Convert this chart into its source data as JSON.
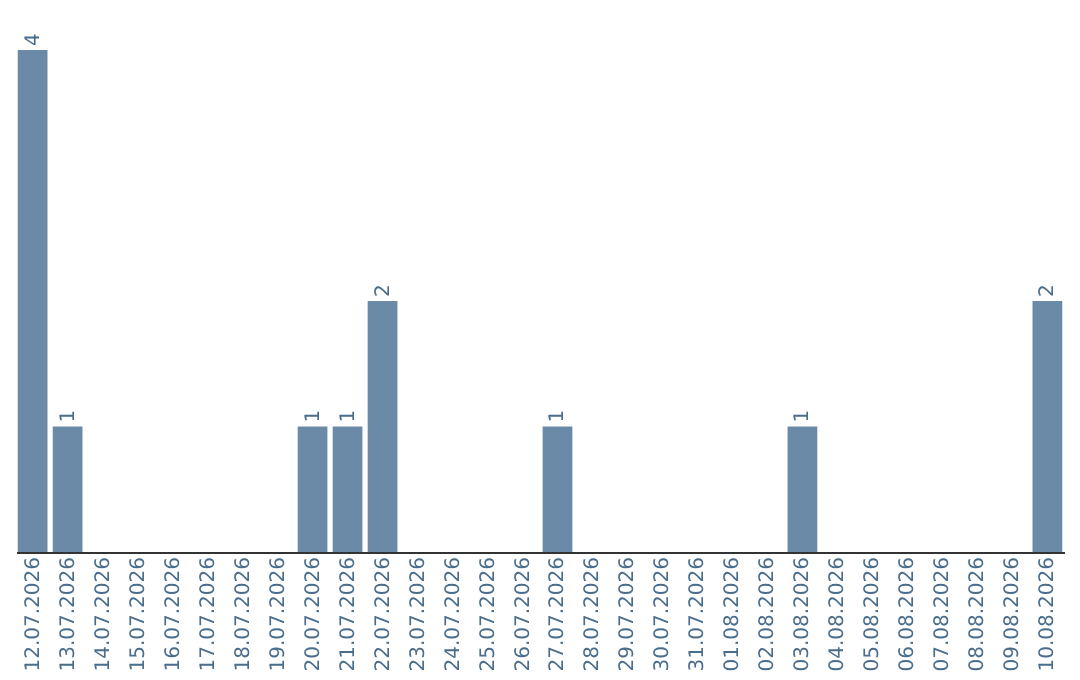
{
  "chart_data": {
    "type": "bar",
    "categories": [
      "12.07.2026",
      "13.07.2026",
      "14.07.2026",
      "15.07.2026",
      "16.07.2026",
      "17.07.2026",
      "18.07.2026",
      "19.07.2026",
      "20.07.2026",
      "21.07.2026",
      "22.07.2026",
      "23.07.2026",
      "24.07.2026",
      "25.07.2026",
      "26.07.2026",
      "27.07.2026",
      "28.07.2026",
      "29.07.2026",
      "30.07.2026",
      "31.07.2026",
      "01.08.2026",
      "02.08.2026",
      "03.08.2026",
      "04.08.2026",
      "05.08.2026",
      "06.08.2026",
      "07.08.2026",
      "08.08.2026",
      "09.08.2026",
      "10.08.2026"
    ],
    "values": [
      4,
      1,
      0,
      0,
      0,
      0,
      0,
      0,
      1,
      1,
      2,
      0,
      0,
      0,
      0,
      1,
      0,
      0,
      0,
      0,
      0,
      0,
      1,
      0,
      0,
      0,
      0,
      0,
      0,
      2
    ],
    "value_labels": [
      "4",
      "1",
      null,
      null,
      null,
      null,
      null,
      null,
      "1",
      "1",
      "2",
      null,
      null,
      null,
      null,
      "1",
      null,
      null,
      null,
      null,
      null,
      null,
      "1",
      null,
      null,
      null,
      null,
      null,
      null,
      "2"
    ],
    "color": "#6b8aa8",
    "grid": false,
    "tick_labels": "x"
  }
}
